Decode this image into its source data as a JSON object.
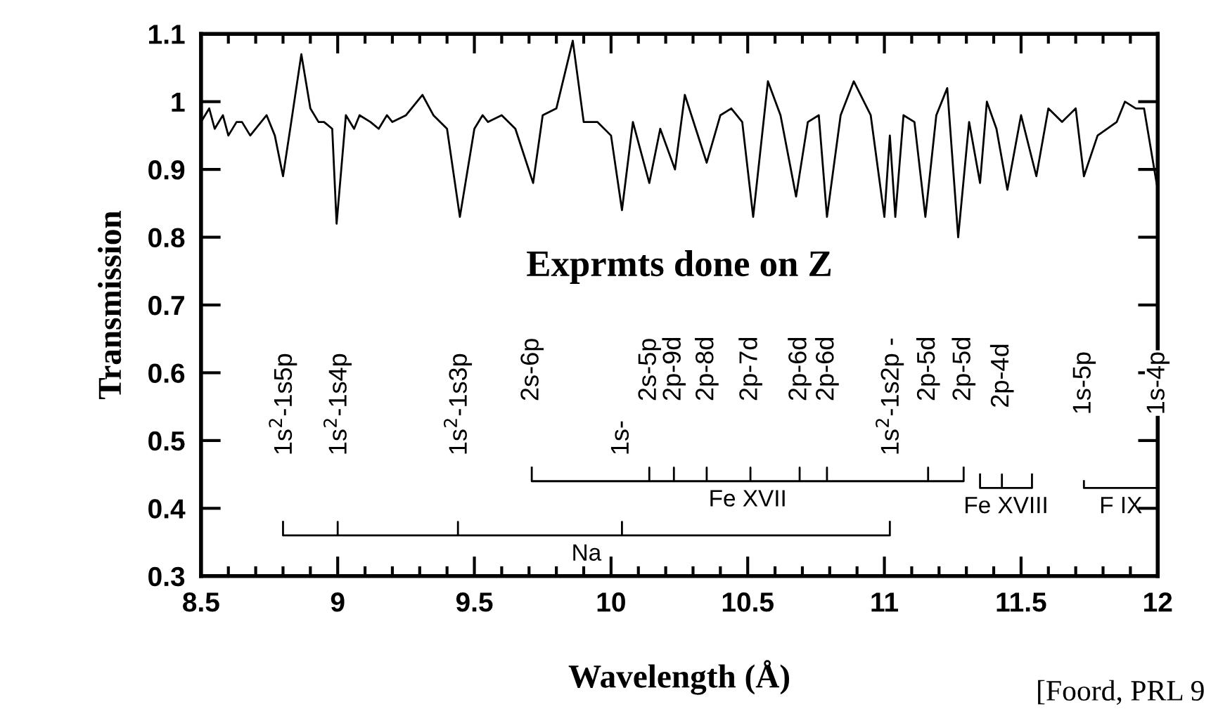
{
  "chart_data": {
    "type": "line",
    "xlabel": "Wavelength (Å)",
    "ylabel": "Transmission",
    "xlim": [
      8.5,
      12
    ],
    "xticks": [
      8.5,
      9,
      9.5,
      10,
      10.5,
      11,
      11.5,
      12
    ],
    "ylim": [
      0.3,
      1.1
    ],
    "yticks": [
      0.3,
      0.4,
      0.5,
      0.6,
      0.7,
      0.8,
      0.9,
      1,
      1.1
    ],
    "grid": false,
    "series": [
      {
        "color": "#000000",
        "x": [
          8.5,
          8.53,
          8.55,
          8.58,
          8.6,
          8.63,
          8.65,
          8.68,
          8.7,
          8.74,
          8.77,
          8.8,
          8.83,
          8.867,
          8.9,
          8.93,
          8.95,
          8.98,
          8.996,
          9.03,
          9.06,
          9.08,
          9.12,
          9.15,
          9.18,
          9.2,
          9.25,
          9.31,
          9.35,
          9.4,
          9.447,
          9.5,
          9.53,
          9.55,
          9.6,
          9.65,
          9.715,
          9.75,
          9.8,
          9.86,
          9.9,
          9.95,
          10.0,
          10.04,
          10.08,
          10.14,
          10.18,
          10.234,
          10.27,
          10.35,
          10.4,
          10.44,
          10.48,
          10.52,
          10.574,
          10.62,
          10.677,
          10.72,
          10.76,
          10.79,
          10.84,
          10.888,
          10.95,
          11.0,
          11.02,
          11.04,
          11.07,
          11.11,
          11.15,
          11.19,
          11.23,
          11.27,
          11.31,
          11.35,
          11.375,
          11.41,
          11.45,
          11.5,
          11.556,
          11.6,
          11.65,
          11.7,
          11.73,
          11.78,
          11.85,
          11.88,
          11.92,
          11.95,
          12.0
        ],
        "values": [
          0.97,
          0.99,
          0.96,
          0.98,
          0.95,
          0.97,
          0.97,
          0.95,
          0.96,
          0.98,
          0.95,
          0.89,
          0.97,
          1.07,
          0.99,
          0.97,
          0.97,
          0.96,
          0.82,
          0.98,
          0.96,
          0.98,
          0.97,
          0.96,
          0.98,
          0.97,
          0.98,
          1.01,
          0.98,
          0.96,
          0.83,
          0.96,
          0.98,
          0.97,
          0.98,
          0.96,
          0.88,
          0.98,
          0.99,
          1.09,
          0.97,
          0.97,
          0.95,
          0.84,
          0.97,
          0.88,
          0.96,
          0.9,
          1.01,
          0.91,
          0.98,
          0.99,
          0.97,
          0.83,
          1.03,
          0.98,
          0.86,
          0.97,
          0.98,
          0.83,
          0.98,
          1.03,
          0.98,
          0.83,
          0.95,
          0.83,
          0.98,
          0.97,
          0.83,
          0.98,
          1.02,
          0.8,
          0.97,
          0.88,
          1.0,
          0.96,
          0.87,
          0.98,
          0.89,
          0.99,
          0.97,
          0.99,
          0.89,
          0.95,
          0.97,
          1.0,
          0.99,
          0.99,
          0.87
        ]
      },
      {
        "name": "Na",
        "color": "#000000",
        "x": [
          8.8,
          8.8,
          9.0,
          9.0,
          9.0,
          9.44,
          9.44,
          9.44,
          10.04,
          10.04,
          10.04,
          11.02,
          11.02
        ],
        "values": [
          0.38,
          0.36,
          0.36,
          0.38,
          0.36,
          0.36,
          0.38,
          0.36,
          0.36,
          0.38,
          0.36,
          0.36,
          0.38
        ]
      },
      {
        "name": "Fe XVII",
        "color": "#000000",
        "x": [
          9.71,
          9.71,
          10.14,
          10.14,
          10.14,
          10.23,
          10.23,
          10.23,
          10.35,
          10.35,
          10.35,
          10.51,
          10.51,
          10.51,
          10.69,
          10.69,
          10.69,
          10.79,
          10.79,
          10.79,
          11.16,
          11.16,
          11.16,
          11.29,
          11.29
        ],
        "values": [
          0.46,
          0.44,
          0.44,
          0.46,
          0.44,
          0.44,
          0.46,
          0.44,
          0.44,
          0.46,
          0.44,
          0.44,
          0.46,
          0.44,
          0.44,
          0.46,
          0.44,
          0.44,
          0.46,
          0.44,
          0.44,
          0.46,
          0.44,
          0.44,
          0.46
        ]
      },
      {
        "name": "Fe XVIII",
        "color": "#000000",
        "x": [
          11.35,
          11.35,
          11.43,
          11.43,
          11.43,
          11.54,
          11.54
        ],
        "values": [
          0.45,
          0.43,
          0.43,
          0.45,
          0.43,
          0.43,
          0.45
        ]
      },
      {
        "name": "F IX",
        "color": "#000000",
        "x": [
          11.73,
          11.73,
          12.0,
          12.0
        ],
        "values": [
          0.44,
          0.43,
          0.43,
          0.44
        ]
      }
    ],
    "annotations": [
      "Exprmts done on Z",
      "[Foord, PRL 9",
      {
        "text": "1s$^{2}$-1s5p",
        "x": 8.8,
        "y": 0.38
      },
      {
        "text": "1s$^{2}$-1s4p",
        "x": 9.0,
        "y": 0.38
      },
      {
        "text": "1s$^{2}$-1s3p",
        "x": 9.44,
        "y": 0.38
      },
      {
        "text": "2s-6p",
        "x": 9.71,
        "y": 0.46
      },
      {
        "text": "1s-",
        "x": 10.04,
        "y": 0.38
      },
      {
        "text": "2s-5p",
        "x": 10.14,
        "y": 0.46
      },
      {
        "text": "2p-9d",
        "x": 10.23,
        "y": 0.46
      },
      {
        "text": "2p-8d",
        "x": 10.35,
        "y": 0.46
      },
      {
        "text": "2p-7d",
        "x": 10.51,
        "y": 0.46
      },
      {
        "text": "2p-6d",
        "x": 10.69,
        "y": 0.46
      },
      {
        "text": "2p-6d",
        "x": 10.79,
        "y": 0.46
      },
      {
        "text": "1s$^{2}$-1s2p -",
        "x": 11.02,
        "y": 0.38
      },
      {
        "text": "2p-5d",
        "x": 11.16,
        "y": 0.46
      },
      {
        "text": "2p-5d",
        "x": 11.29,
        "y": 0.46
      },
      {
        "text": "2p-4d",
        "x": 11.43,
        "y": 0.45
      },
      {
        "text": "1s-5p",
        "x": 11.73,
        "y": 0.44
      },
      {
        "text": "1s-4p",
        "x": 12.0,
        "y": 0.44
      }
    ]
  }
}
